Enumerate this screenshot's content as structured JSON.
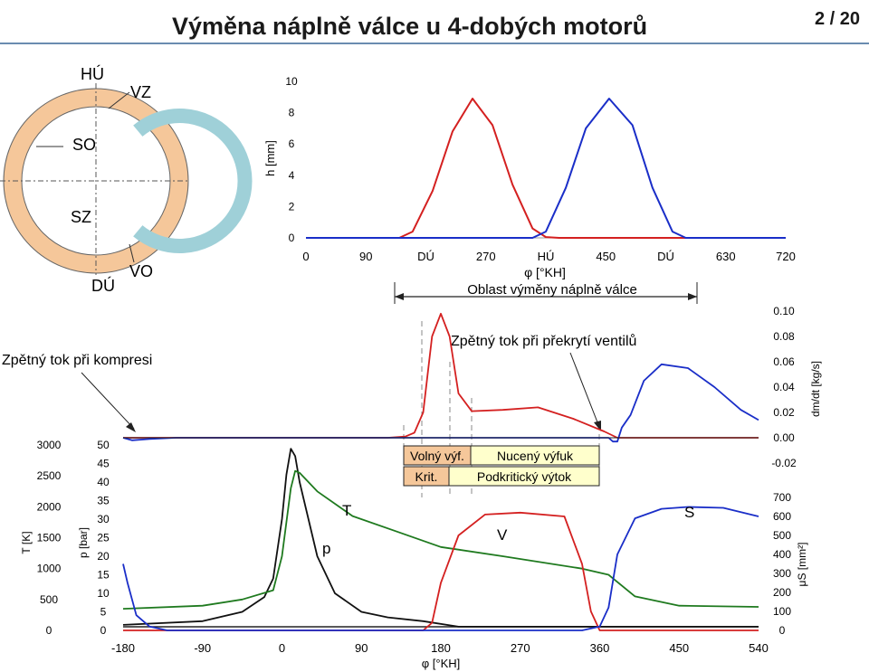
{
  "header": {
    "title": "Výměna náplně válce u 4-dobých motorů",
    "page_current": "2",
    "page_sep": " / ",
    "page_total": "20"
  },
  "circle_diagram": {
    "labels": [
      "HÚ",
      "VZ",
      "SO",
      "SZ",
      "DÚ",
      "VO"
    ],
    "colors": {
      "outer_ring": "#f5c79a",
      "inner_ring": "#9fd0d8"
    }
  },
  "lift_chart": {
    "ylabel": "h [mm]",
    "yticks": [
      "0",
      "2",
      "4",
      "6",
      "8",
      "10"
    ],
    "xticks": [
      "0",
      "90",
      "DÚ",
      "270",
      "HÚ",
      "450",
      "DÚ",
      "630",
      "720"
    ],
    "xlabel": "φ [°KH]",
    "range_label": "Oblast výměny náplně válce"
  },
  "flow_chart": {
    "ylabel": "dm/dt [kg/s]",
    "yticks": [
      "-0.02",
      "0.00",
      "0.02",
      "0.04",
      "0.06",
      "0.08",
      "0.10"
    ],
    "annotation_left": "Zpětný tok při kompresi",
    "annotation_right": "Zpětný tok při překrytí ventilů"
  },
  "phase_boxes": {
    "volny": "Volný výf.",
    "krit": "Krit.",
    "nuceny": "Nucený výfuk",
    "podkrit": "Podkritický výtok",
    "colors": {
      "volny": "#f5c79a",
      "krit": "#f5c79a",
      "nuceny": "#ffffcc",
      "podkrit": "#ffffcc"
    }
  },
  "main_chart": {
    "t_label": "T [K]",
    "t_ticks": [
      "0",
      "500",
      "1000",
      "1500",
      "2000",
      "2500",
      "3000"
    ],
    "p_label": "p [bar]",
    "p_ticks": [
      "0",
      "5",
      "10",
      "15",
      "20",
      "25",
      "30",
      "35",
      "40",
      "45",
      "50"
    ],
    "s_label": "μS [mm²]",
    "s_ticks": [
      "0",
      "100",
      "200",
      "300",
      "400",
      "500",
      "600",
      "700"
    ],
    "xticks": [
      "-180",
      "-90",
      "0",
      "90",
      "180",
      "270",
      "360",
      "450",
      "540"
    ],
    "xlabel": "φ [°KH]",
    "curve_labels": {
      "p": "p",
      "T": "T",
      "V": "V",
      "S": "S"
    }
  },
  "chart_data": [
    {
      "type": "line",
      "title": "",
      "xlabel": "φ [°KH]",
      "ylabel": "h [mm]",
      "xlim": [
        0,
        720
      ],
      "ylim": [
        0,
        10
      ],
      "series": [
        {
          "color": "#d42020",
          "x": [
            0,
            140,
            160,
            190,
            220,
            250,
            280,
            310,
            340,
            360,
            380,
            720
          ],
          "values": [
            0,
            0,
            0.4,
            3.0,
            6.8,
            8.9,
            7.2,
            3.4,
            0.6,
            0.05,
            0,
            0
          ]
        },
        {
          "color": "#1a2ec8",
          "x": [
            0,
            340,
            360,
            390,
            420,
            455,
            490,
            520,
            550,
            570,
            720
          ],
          "values": [
            0,
            0,
            0.4,
            3.2,
            7.0,
            8.9,
            7.2,
            3.2,
            0.4,
            0,
            0
          ]
        }
      ]
    },
    {
      "type": "line",
      "title": "",
      "xlabel": "φ [°KH]",
      "ylabel": "dm/dt [kg/s]",
      "xlim": [
        -180,
        540
      ],
      "ylim": [
        -0.02,
        0.1
      ],
      "series": [
        {
          "color": "#d42020",
          "x": [
            -180,
            120,
            140,
            150,
            160,
            170,
            180,
            190,
            200,
            215,
            250,
            290,
            330,
            365,
            380,
            540
          ],
          "values": [
            0,
            0,
            0.001,
            0.004,
            0.02,
            0.08,
            0.098,
            0.08,
            0.035,
            0.021,
            0.022,
            0.024,
            0.015,
            0.005,
            0,
            0
          ]
        },
        {
          "color": "#1a2ec8",
          "x": [
            -180,
            -170,
            -150,
            -120,
            370,
            375,
            380,
            385,
            395,
            410,
            430,
            460,
            490,
            520,
            540
          ],
          "values": [
            0,
            -0.002,
            -0.001,
            0,
            0,
            -0.003,
            -0.003,
            0.008,
            0.018,
            0.045,
            0.058,
            0.055,
            0.04,
            0.022,
            0.014
          ]
        }
      ]
    },
    {
      "type": "line",
      "title": "",
      "xlabel": "φ [°KH]",
      "xlim": [
        -180,
        540
      ],
      "series": [
        {
          "name": "p",
          "color": "#111111",
          "unit": "bar",
          "x": [
            -180,
            -90,
            -45,
            -20,
            -10,
            0,
            5,
            10,
            15,
            20,
            40,
            60,
            90,
            120,
            160,
            200,
            300,
            540
          ],
          "values": [
            1.5,
            2.5,
            5,
            9,
            14,
            30,
            42,
            49,
            47,
            40,
            20,
            10,
            5,
            3.5,
            2.5,
            1,
            1,
            1
          ]
        },
        {
          "name": "T",
          "color": "#1f7a1f",
          "unit": "K",
          "x": [
            -180,
            -90,
            -45,
            -10,
            0,
            10,
            15,
            20,
            40,
            80,
            130,
            180,
            250,
            340,
            370,
            400,
            450,
            540
          ],
          "values": [
            350,
            400,
            500,
            650,
            1200,
            2300,
            2580,
            2550,
            2250,
            1850,
            1600,
            1350,
            1200,
            1000,
            900,
            550,
            400,
            380
          ]
        },
        {
          "name": "V",
          "color": "#d42020",
          "unit": "mm²",
          "x": [
            -180,
            160,
            170,
            180,
            200,
            230,
            270,
            320,
            340,
            350,
            360,
            540
          ],
          "values": [
            0,
            0,
            40,
            250,
            500,
            610,
            620,
            600,
            350,
            100,
            0,
            0
          ]
        },
        {
          "name": "S",
          "color": "#1a2ec8",
          "unit": "mm²",
          "x": [
            -180,
            -175,
            -165,
            -150,
            -130,
            340,
            360,
            370,
            380,
            400,
            430,
            460,
            500,
            540
          ],
          "values": [
            350,
            250,
            80,
            20,
            0,
            0,
            20,
            120,
            400,
            590,
            640,
            650,
            645,
            600
          ]
        }
      ]
    }
  ]
}
